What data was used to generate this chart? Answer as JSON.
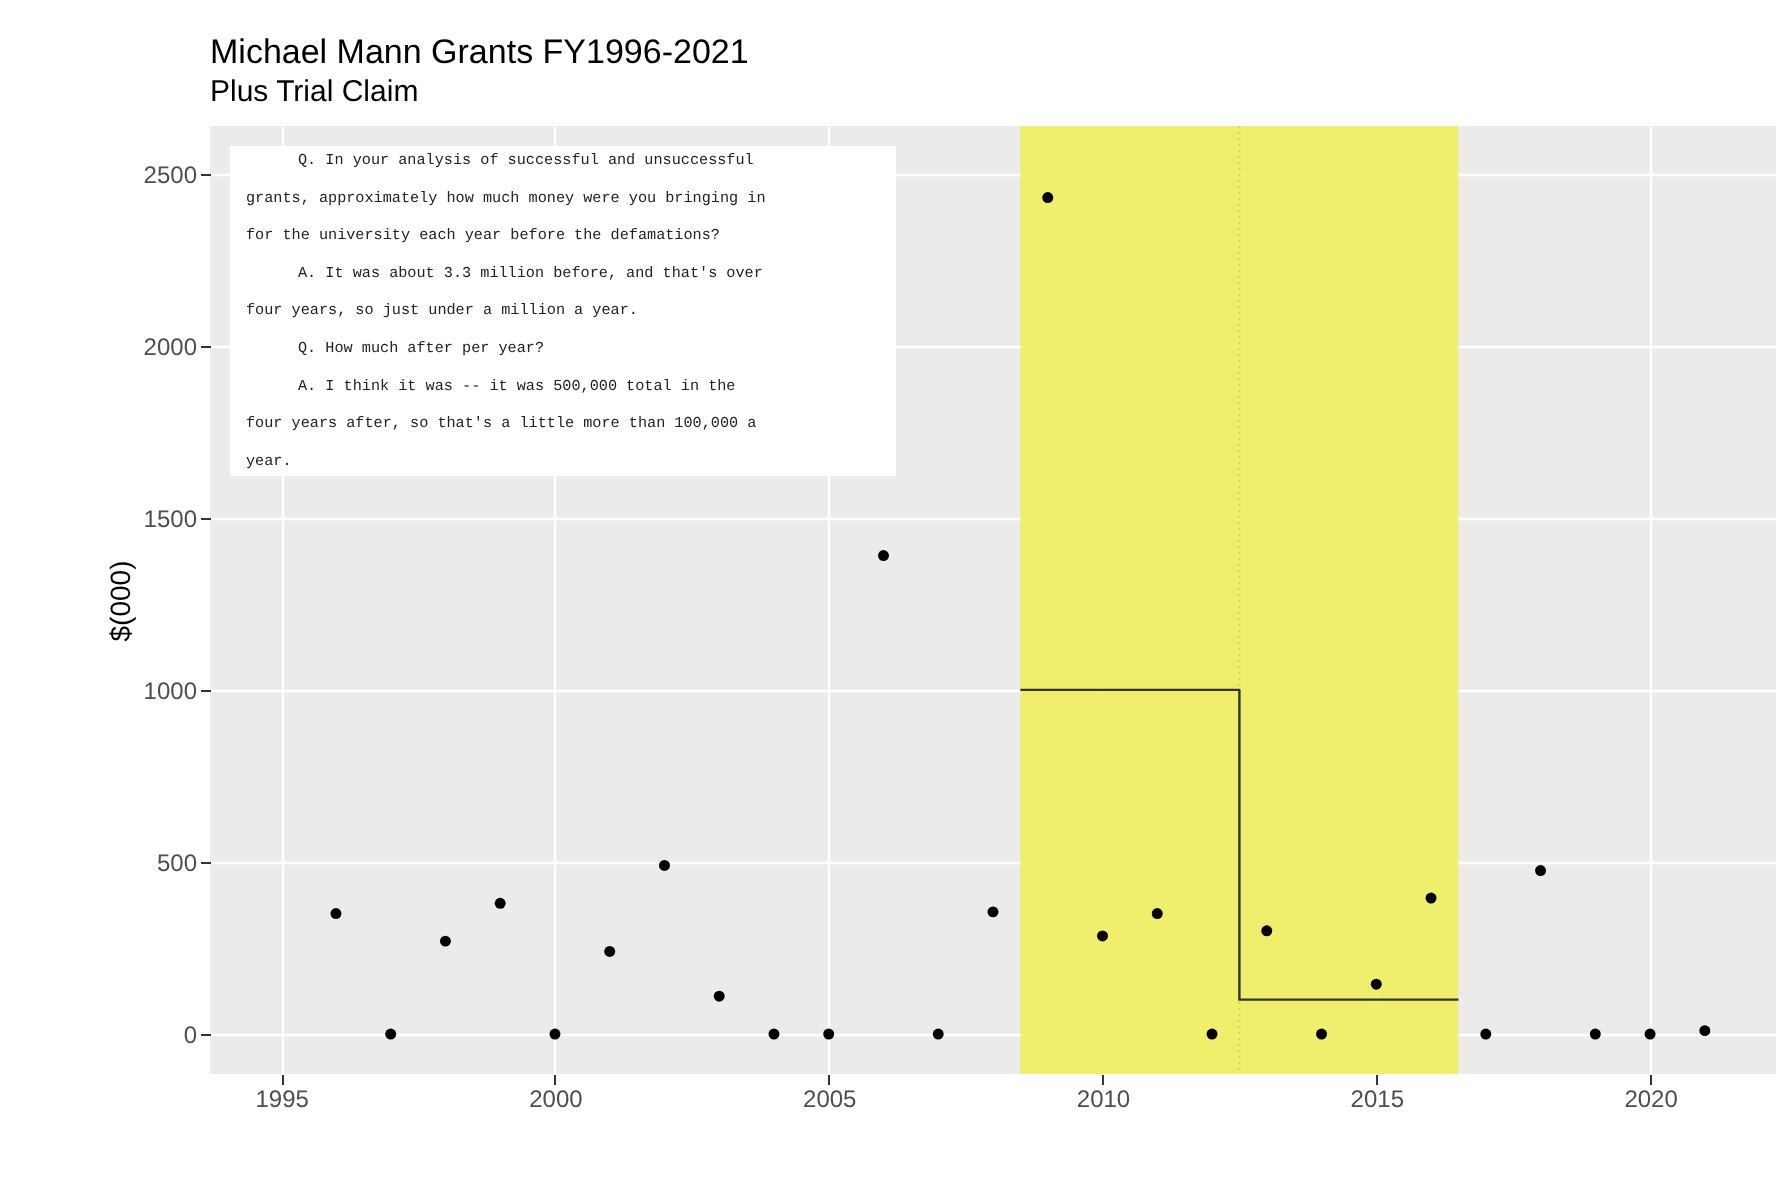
{
  "chart_data": {
    "type": "scatter",
    "title": "Michael Mann Grants FY1996-2021",
    "subtitle": "Plus Trial Claim",
    "ylabel": "$(000)",
    "x": [
      1996,
      1997,
      1998,
      1999,
      2000,
      2001,
      2002,
      2003,
      2004,
      2005,
      2006,
      2007,
      2008,
      2009,
      2010,
      2011,
      2012,
      2013,
      2014,
      2015,
      2016,
      2017,
      2018,
      2019,
      2020,
      2021
    ],
    "series": [
      {
        "color": "#000000",
        "marker": "circle",
        "values": [
          350,
          0,
          270,
          380,
          0,
          240,
          490,
          110,
          0,
          0,
          1390,
          0,
          355,
          2430,
          285,
          350,
          0,
          300,
          0,
          145,
          395,
          0,
          475,
          0,
          0,
          10
        ]
      },
      {
        "type": "line",
        "color": "#333333",
        "line_style": "solid",
        "marker": "none",
        "x": [
          2008.5,
          2012.5,
          2012.5,
          2016.5
        ],
        "values": [
          1000,
          1000,
          100,
          100
        ]
      }
    ],
    "bands": [
      {
        "axis": "x",
        "from": 2008.5,
        "to": 2016.5,
        "color": "#f0ef66"
      }
    ],
    "ref_lines": [
      {
        "axis": "x",
        "value": 2012.5,
        "color": "#d9d64a",
        "line_style": "dotted"
      }
    ],
    "annotations": [
      "     Q.   In your analysis of successful and unsuccessful\ngrants, approximately how much money were you bringing in\nfor the university each year before the defamations?\n     A.   It was about 3.3 million before, and that's over\nfour years, so just under a million a year.\n     Q.   How much after per year?\n     A.   I think it was -- it was 500,000 total in the\nfour years after, so that's a little more than 100,000 a\nyear."
    ],
    "xlim": [
      1993.7,
      2022.3
    ],
    "ylim": [
      -116,
      2638
    ],
    "xticks": [
      1995,
      2000,
      2005,
      2010,
      2015,
      2020
    ],
    "yticks": [
      0,
      500,
      1000,
      1500,
      2000,
      2500
    ],
    "grid": true
  }
}
